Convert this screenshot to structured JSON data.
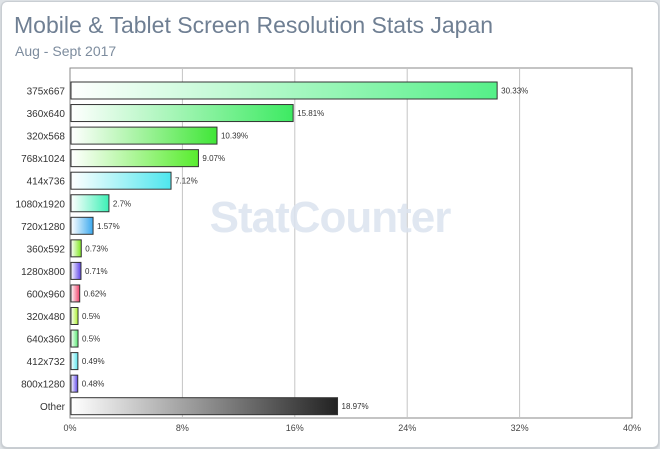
{
  "title": "Mobile & Tablet Screen Resolution Stats Japan",
  "subtitle": "Aug - Sept 2017",
  "watermark": "StatCounter",
  "chart_data": {
    "type": "bar",
    "orientation": "horizontal",
    "title": "Mobile & Tablet Screen Resolution Stats Japan",
    "subtitle": "Aug - Sept 2017",
    "xlabel": "",
    "ylabel": "",
    "xlim": [
      0,
      40
    ],
    "x_ticks": [
      "0%",
      "8%",
      "16%",
      "24%",
      "32%",
      "40%"
    ],
    "grid": true,
    "categories": [
      "375x667",
      "360x640",
      "320x568",
      "768x1024",
      "414x736",
      "1080x1920",
      "720x1280",
      "360x592",
      "1280x800",
      "600x960",
      "320x480",
      "640x360",
      "412x732",
      "800x1280",
      "Other"
    ],
    "values": [
      30.33,
      15.81,
      10.39,
      9.07,
      7.12,
      2.7,
      1.57,
      0.73,
      0.71,
      0.62,
      0.5,
      0.5,
      0.49,
      0.48,
      18.97
    ],
    "value_labels": [
      "30.33%",
      "15.81%",
      "10.39%",
      "9.07%",
      "7.12%",
      "2.7%",
      "1.57%",
      "0.73%",
      "0.71%",
      "0.62%",
      "0.5%",
      "0.5%",
      "0.49%",
      "0.48%",
      "18.97%"
    ],
    "colors": [
      "#55f088",
      "#3dea62",
      "#40e637",
      "#58ec2e",
      "#4ee6ee",
      "#3cf0b5",
      "#3aa8ee",
      "#7de61c",
      "#5b3fe8",
      "#ee3f68",
      "#aaee2c",
      "#54e86e",
      "#56e6ee",
      "#5e46ea",
      "#222222"
    ]
  }
}
